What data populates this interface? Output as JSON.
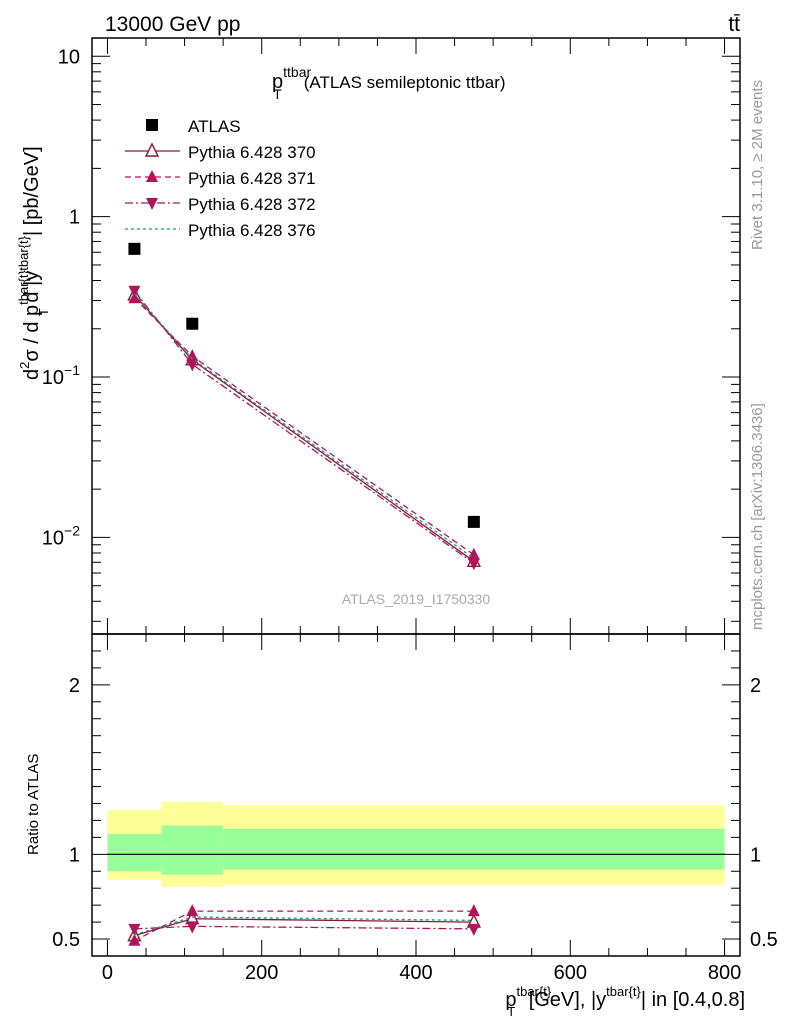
{
  "header": {
    "process": "13000 GeV pp",
    "final_state": "tt̄"
  },
  "plot_title": {
    "main": "p",
    "sub": "T",
    "sup": "ttbar",
    "rest": "(ATLAS semileptonic ttbar)"
  },
  "side_labels": {
    "rivet": "Rivet 3.1.10, ≥ 2M events",
    "mcplots": "mcplots.cern.ch [arXiv:1306.3436]"
  },
  "analysis_id": "ATLAS_2019_I1750330",
  "colors": {
    "atlas": "#000000",
    "p370": "#8b1a2e",
    "p371": "#b0145a",
    "p372": "#b0145a",
    "p376": "#159a8a",
    "band_outer": "#ffff99",
    "band_inner": "#99ff99"
  },
  "chart_data": [
    {
      "type": "scatter",
      "scale": "log",
      "ylabel": "d²σ / d p^{tbar{t}}_T d |y^{tbar{t}}| [pb/GeV]",
      "ylabel_parts": {
        "a": "d",
        "a_sup": "2",
        "b": "σ /  d p",
        "b_sup": "tbar{t}",
        "b_sub": "T",
        "c": " d |y",
        "c_sup": "tbar{t}",
        "d": "| [pb/GeV]"
      },
      "xlim": [
        -20,
        820
      ],
      "ylim": [
        0.0025,
        13
      ],
      "yticks": [
        {
          "value": 10,
          "label": "10"
        },
        {
          "value": 1,
          "label": "1"
        },
        {
          "value": 0.1,
          "base": "10",
          "exp": "−1"
        },
        {
          "value": 0.01,
          "base": "10",
          "exp": "−2"
        }
      ],
      "legend_placement": "top-left",
      "series": [
        {
          "name": "ATLAS",
          "key": "atlas",
          "marker": "square",
          "line": "none",
          "x": [
            35,
            110,
            475
          ],
          "y": [
            0.63,
            0.215,
            0.0125
          ]
        },
        {
          "name": "Pythia 6.428 370",
          "key": "p370",
          "marker": "triangle-up-open",
          "line": "solid",
          "x": [
            35,
            110,
            475
          ],
          "y": [
            0.325,
            0.128,
            0.0071
          ]
        },
        {
          "name": "Pythia 6.428 371",
          "key": "p371",
          "marker": "triangle-up",
          "line": "dashed",
          "x": [
            35,
            110,
            475
          ],
          "y": [
            0.31,
            0.135,
            0.0078
          ]
        },
        {
          "name": "Pythia 6.428 372",
          "key": "p372",
          "marker": "triangle-down",
          "line": "dashdot",
          "x": [
            35,
            110,
            475
          ],
          "y": [
            0.345,
            0.12,
            0.0069
          ]
        },
        {
          "name": "Pythia 6.428 376",
          "key": "p376",
          "marker": "none",
          "line": "dashed-fine",
          "x": [
            35,
            110,
            475
          ],
          "y": [
            0.33,
            0.13,
            0.0074
          ]
        }
      ]
    },
    {
      "type": "line",
      "scale": "linear",
      "ylabel": "Ratio to ATLAS",
      "xlabel": "p^{tbar{t}}_T [GeV], |y^{tbar{t}}| in [0.4,0.8]",
      "xlabel_parts": {
        "a": "p",
        "a_sup": "tbar{t}",
        "a_sub": "T",
        "b": " [GeV], |y",
        "b_sup": "tbar{t}",
        "c": "| in [0.4,0.8]"
      },
      "xlim": [
        -20,
        820
      ],
      "ylim": [
        0.4,
        2.3
      ],
      "xticks": [
        0,
        200,
        400,
        600,
        800
      ],
      "yticks": [
        0.5,
        1,
        2
      ],
      "reference_line": 1,
      "bands": [
        {
          "x0": 0,
          "x1": 70,
          "inner": [
            0.9,
            1.12
          ],
          "outer": [
            0.85,
            1.26
          ]
        },
        {
          "x0": 70,
          "x1": 150,
          "inner": [
            0.88,
            1.17
          ],
          "outer": [
            0.81,
            1.31
          ]
        },
        {
          "x0": 150,
          "x1": 800,
          "inner": [
            0.91,
            1.15
          ],
          "outer": [
            0.82,
            1.29
          ]
        }
      ],
      "series": [
        {
          "name": "Pythia 6.428 370",
          "key": "p370",
          "marker": "triangle-up-open",
          "line": "solid",
          "x": [
            35,
            110,
            475
          ],
          "y": [
            0.52,
            0.62,
            0.6
          ]
        },
        {
          "name": "Pythia 6.428 371",
          "key": "p371",
          "marker": "triangle-up",
          "line": "dashed",
          "x": [
            35,
            110,
            475
          ],
          "y": [
            0.49,
            0.665,
            0.665
          ]
        },
        {
          "name": "Pythia 6.428 372",
          "key": "p372",
          "marker": "triangle-down",
          "line": "dashdot",
          "x": [
            35,
            110,
            475
          ],
          "y": [
            0.56,
            0.575,
            0.56
          ]
        },
        {
          "name": "Pythia 6.428 376",
          "key": "p376",
          "marker": "none",
          "line": "dashed-fine",
          "x": [
            35,
            110,
            475
          ],
          "y": [
            0.525,
            0.63,
            0.61
          ]
        }
      ]
    }
  ]
}
